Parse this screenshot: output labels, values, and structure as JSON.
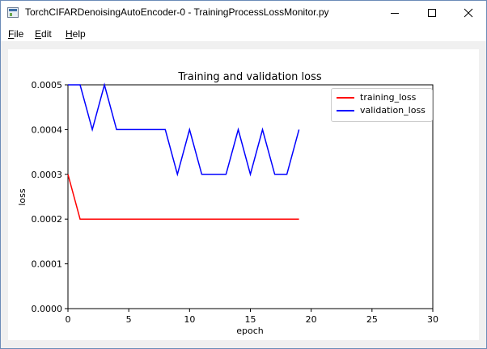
{
  "window": {
    "title": "TorchCIFARDenoisingAutoEncoder-0 - TrainingProcessLossMonitor.py",
    "minimize_icon": "minimize-icon",
    "maximize_icon": "maximize-icon",
    "close_icon": "close-icon"
  },
  "menu": {
    "file": {
      "accel": "F",
      "rest": "ile"
    },
    "edit": {
      "accel": "E",
      "rest": "dit"
    },
    "help": {
      "accel": "H",
      "rest": "elp"
    }
  },
  "chart_data": {
    "type": "line",
    "title": "Training and validation loss",
    "xlabel": "epoch",
    "ylabel": "loss",
    "xlim": [
      0,
      30
    ],
    "ylim": [
      0,
      0.0005
    ],
    "xticks": [
      0,
      5,
      10,
      15,
      20,
      25,
      30
    ],
    "yticks": [
      "0.0000",
      "0.0001",
      "0.0002",
      "0.0003",
      "0.0004",
      "0.0005"
    ],
    "grid": false,
    "legend_position": "top-right",
    "x": [
      0,
      1,
      2,
      3,
      4,
      5,
      6,
      7,
      8,
      9,
      10,
      11,
      12,
      13,
      14,
      15,
      16,
      17,
      18,
      19
    ],
    "series": [
      {
        "name": "training_loss",
        "color": "#ff0000",
        "values": [
          0.0003,
          0.0002,
          0.0002,
          0.0002,
          0.0002,
          0.0002,
          0.0002,
          0.0002,
          0.0002,
          0.0002,
          0.0002,
          0.0002,
          0.0002,
          0.0002,
          0.0002,
          0.0002,
          0.0002,
          0.0002,
          0.0002,
          0.0002
        ]
      },
      {
        "name": "validation_loss",
        "color": "#0000ff",
        "values": [
          0.0005,
          0.0005,
          0.0004,
          0.0005,
          0.0004,
          0.0004,
          0.0004,
          0.0004,
          0.0004,
          0.0003,
          0.0004,
          0.0003,
          0.0003,
          0.0003,
          0.0004,
          0.0003,
          0.0004,
          0.0003,
          0.0003,
          0.0004
        ]
      }
    ]
  }
}
